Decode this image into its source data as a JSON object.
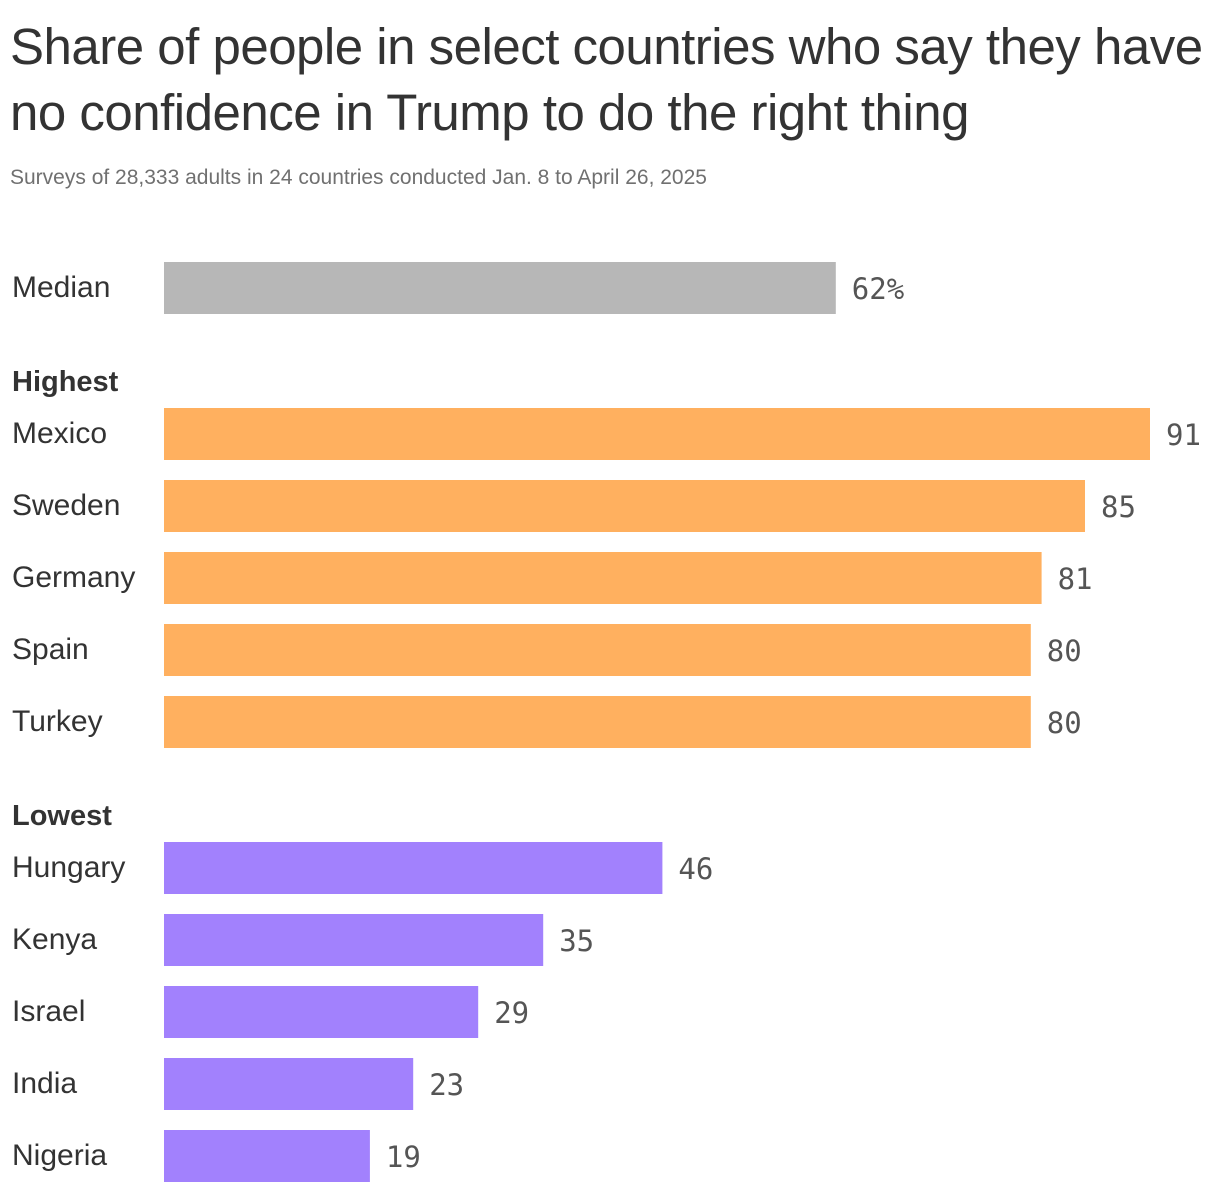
{
  "chart_data": {
    "type": "bar",
    "orientation": "horizontal",
    "title": "Share of people in select countries who say they have no confidence in Trump to do the right thing",
    "subtitle": "Surveys of 28,333 adults in 24 countries conducted Jan. 8 to April 26, 2025",
    "xlim": [
      0,
      91
    ],
    "grid": false,
    "colors": {
      "median": "#b7b7b7",
      "highest": "#ffb05f",
      "lowest": "#a281fd"
    },
    "groups": [
      {
        "key": "median",
        "label": "",
        "items": [
          {
            "category": "Median",
            "value": 62,
            "value_label": "62%"
          }
        ]
      },
      {
        "key": "highest",
        "label": "Highest",
        "items": [
          {
            "category": "Mexico",
            "value": 91,
            "value_label": "91"
          },
          {
            "category": "Sweden",
            "value": 85,
            "value_label": "85"
          },
          {
            "category": "Germany",
            "value": 81,
            "value_label": "81"
          },
          {
            "category": "Spain",
            "value": 80,
            "value_label": "80"
          },
          {
            "category": "Turkey",
            "value": 80,
            "value_label": "80"
          }
        ]
      },
      {
        "key": "lowest",
        "label": "Lowest",
        "items": [
          {
            "category": "Hungary",
            "value": 46,
            "value_label": "46"
          },
          {
            "category": "Kenya",
            "value": 35,
            "value_label": "35"
          },
          {
            "category": "Israel",
            "value": 29,
            "value_label": "29"
          },
          {
            "category": "India",
            "value": 23,
            "value_label": "23"
          },
          {
            "category": "Nigeria",
            "value": 19,
            "value_label": "19"
          }
        ]
      }
    ]
  }
}
